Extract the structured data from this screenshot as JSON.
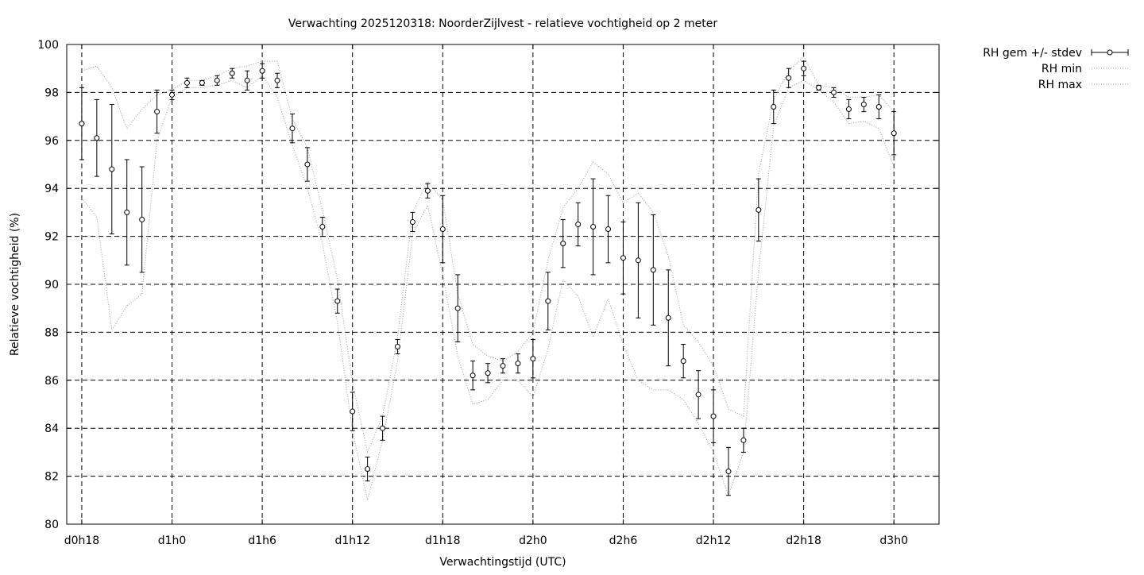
{
  "chart_data": {
    "type": "line",
    "title": "Verwachting 2025120318: NoorderZijlvest - relatieve vochtigheid op 2 meter",
    "xlabel": "Verwachtingstijd (UTC)",
    "ylabel": "Relatieve vochtigheid (%)",
    "xlim": [
      -1,
      57
    ],
    "ylim": [
      80,
      100
    ],
    "yticks": [
      80,
      82,
      84,
      86,
      88,
      90,
      92,
      94,
      96,
      98,
      100
    ],
    "xticks": [
      {
        "x": 0,
        "label": "d0h18"
      },
      {
        "x": 6,
        "label": "d1h0"
      },
      {
        "x": 12,
        "label": "d1h6"
      },
      {
        "x": 18,
        "label": "d1h12"
      },
      {
        "x": 24,
        "label": "d1h18"
      },
      {
        "x": 30,
        "label": "d2h0"
      },
      {
        "x": 36,
        "label": "d2h6"
      },
      {
        "x": 42,
        "label": "d2h12"
      },
      {
        "x": 48,
        "label": "d2h18"
      },
      {
        "x": 54,
        "label": "d3h0"
      }
    ],
    "grid": true,
    "legend_position": "outside-top-right",
    "x": [
      0,
      1,
      2,
      3,
      4,
      5,
      6,
      7,
      8,
      9,
      10,
      11,
      12,
      13,
      14,
      15,
      16,
      17,
      18,
      19,
      20,
      21,
      22,
      23,
      24,
      25,
      26,
      27,
      28,
      29,
      30,
      31,
      32,
      33,
      34,
      35,
      36,
      37,
      38,
      39,
      40,
      41,
      42,
      43,
      44,
      45,
      46,
      47,
      48,
      49,
      50,
      51,
      52,
      53,
      54
    ],
    "series": [
      {
        "name": "RH gem +/- stdev",
        "style": "points-errorbars",
        "values": [
          96.7,
          96.1,
          94.8,
          93.0,
          92.7,
          97.2,
          97.9,
          98.4,
          98.4,
          98.5,
          98.8,
          98.5,
          98.9,
          98.5,
          96.5,
          95.0,
          92.4,
          89.3,
          84.7,
          82.3,
          84.0,
          87.4,
          92.6,
          93.9,
          92.3,
          89.0,
          86.2,
          86.3,
          86.6,
          86.7,
          86.9,
          89.3,
          91.7,
          92.5,
          92.4,
          92.3,
          91.1,
          91.0,
          90.6,
          88.6,
          86.8,
          85.4,
          84.5,
          82.2,
          83.5,
          93.1,
          97.4,
          98.6,
          99.0,
          98.2,
          98.0,
          97.3,
          97.5,
          97.4,
          96.3
        ],
        "stdev": [
          1.5,
          1.6,
          2.7,
          2.2,
          2.2,
          0.9,
          0.2,
          0.2,
          0.1,
          0.2,
          0.2,
          0.4,
          0.3,
          0.3,
          0.6,
          0.7,
          0.4,
          0.5,
          0.8,
          0.5,
          0.5,
          0.3,
          0.4,
          0.3,
          1.4,
          1.4,
          0.6,
          0.4,
          0.3,
          0.4,
          0.8,
          1.2,
          1.0,
          0.9,
          2.0,
          1.4,
          1.5,
          2.4,
          2.3,
          2.0,
          0.7,
          1.0,
          1.1,
          1.0,
          0.5,
          1.3,
          0.7,
          0.4,
          0.3,
          0.1,
          0.2,
          0.4,
          0.3,
          0.5,
          0.9
        ]
      },
      {
        "name": "RH min",
        "style": "dotted-line",
        "values": [
          93.6,
          92.8,
          88.1,
          89.1,
          89.6,
          96.0,
          97.8,
          98.2,
          98.2,
          98.3,
          98.5,
          98.2,
          98.7,
          97.8,
          95.8,
          94.0,
          91.7,
          88.4,
          83.9,
          81.0,
          83.5,
          86.8,
          92.1,
          93.3,
          90.4,
          87.0,
          85.0,
          85.2,
          86.0,
          86.0,
          85.3,
          87.3,
          90.2,
          89.5,
          87.8,
          89.4,
          87.5,
          86.0,
          85.6,
          85.6,
          85.2,
          84.2,
          83.0,
          81.2,
          83.0,
          90.5,
          96.6,
          98.2,
          98.5,
          98.1,
          97.6,
          96.7,
          96.8,
          96.5,
          94.9
        ]
      },
      {
        "name": "RH max",
        "style": "dotted-line",
        "values": [
          98.9,
          99.1,
          98.2,
          96.5,
          97.3,
          97.9,
          98.1,
          98.5,
          98.5,
          98.7,
          99.0,
          99.1,
          99.3,
          99.3,
          96.9,
          95.7,
          93.1,
          90.2,
          85.9,
          83.0,
          84.5,
          87.8,
          93.0,
          94.3,
          93.5,
          89.6,
          87.5,
          87.0,
          86.8,
          87.2,
          88.0,
          91.0,
          93.2,
          94.0,
          95.1,
          94.6,
          93.4,
          93.8,
          93.0,
          91.2,
          88.3,
          87.6,
          86.6,
          84.8,
          84.5,
          94.6,
          97.7,
          98.9,
          99.5,
          98.3,
          98.2,
          97.8,
          97.8,
          97.9,
          97.2
        ]
      }
    ]
  }
}
